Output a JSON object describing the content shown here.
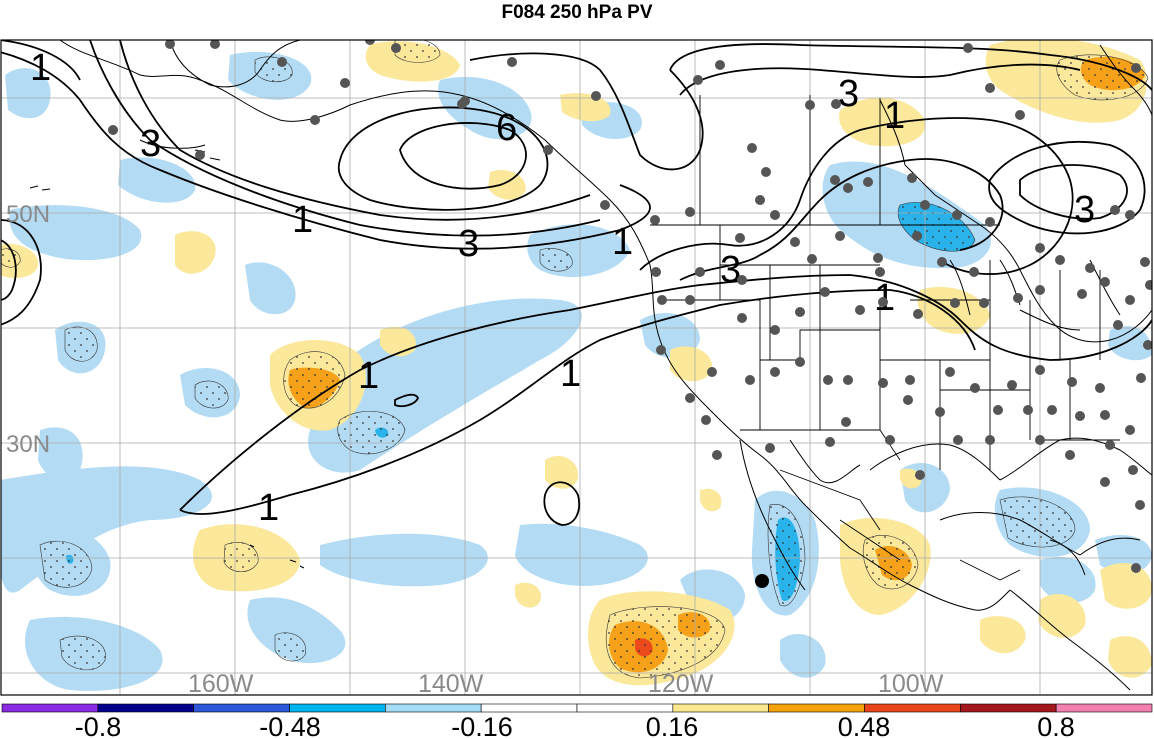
{
  "title": "F084 250 hPa PV",
  "lat_labels": [
    "50N",
    "30N"
  ],
  "lon_labels": [
    "160W",
    "140W",
    "120W",
    "100W"
  ],
  "colorbar": {
    "labels": [
      "-0.8",
      "-0.48",
      "-0.16",
      "0.16",
      "0.48",
      "0.8"
    ],
    "colors": [
      "#8a2be2",
      "#00008b",
      "#2b57d8",
      "#00b4f0",
      "#a6dcf7",
      "#ffffff",
      "#ffffff",
      "#fbe88e",
      "#f4a20c",
      "#e8461a",
      "#a3181c",
      "#f37fb0"
    ]
  },
  "contour_labels": [
    "1",
    "3",
    "3",
    "1",
    "3",
    "1",
    "6",
    "3",
    "1",
    "3",
    "1",
    "1",
    "1",
    "1"
  ],
  "colors": {
    "neg_light": "#b3dcf4",
    "neg_mid": "#2ab3ea",
    "pos_light": "#fbe89a",
    "pos_mid": "#f5a11a",
    "pos_strong": "#ec4a1c",
    "station": "#555555"
  }
}
